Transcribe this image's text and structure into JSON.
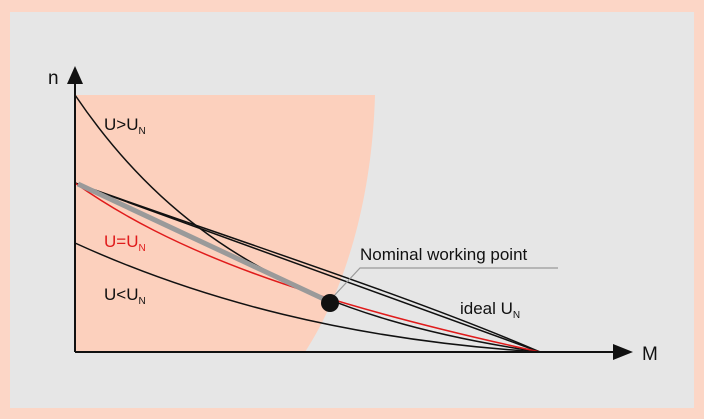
{
  "axes": {
    "y_label": "n",
    "x_label": "M"
  },
  "curves": [
    {
      "label": "U>U",
      "subscript": "N"
    },
    {
      "label": "U=U",
      "subscript": "N"
    },
    {
      "label": "U<U",
      "subscript": "N"
    },
    {
      "label": "ideal U",
      "subscript": "N"
    }
  ],
  "annotation": "Nominal working point"
}
